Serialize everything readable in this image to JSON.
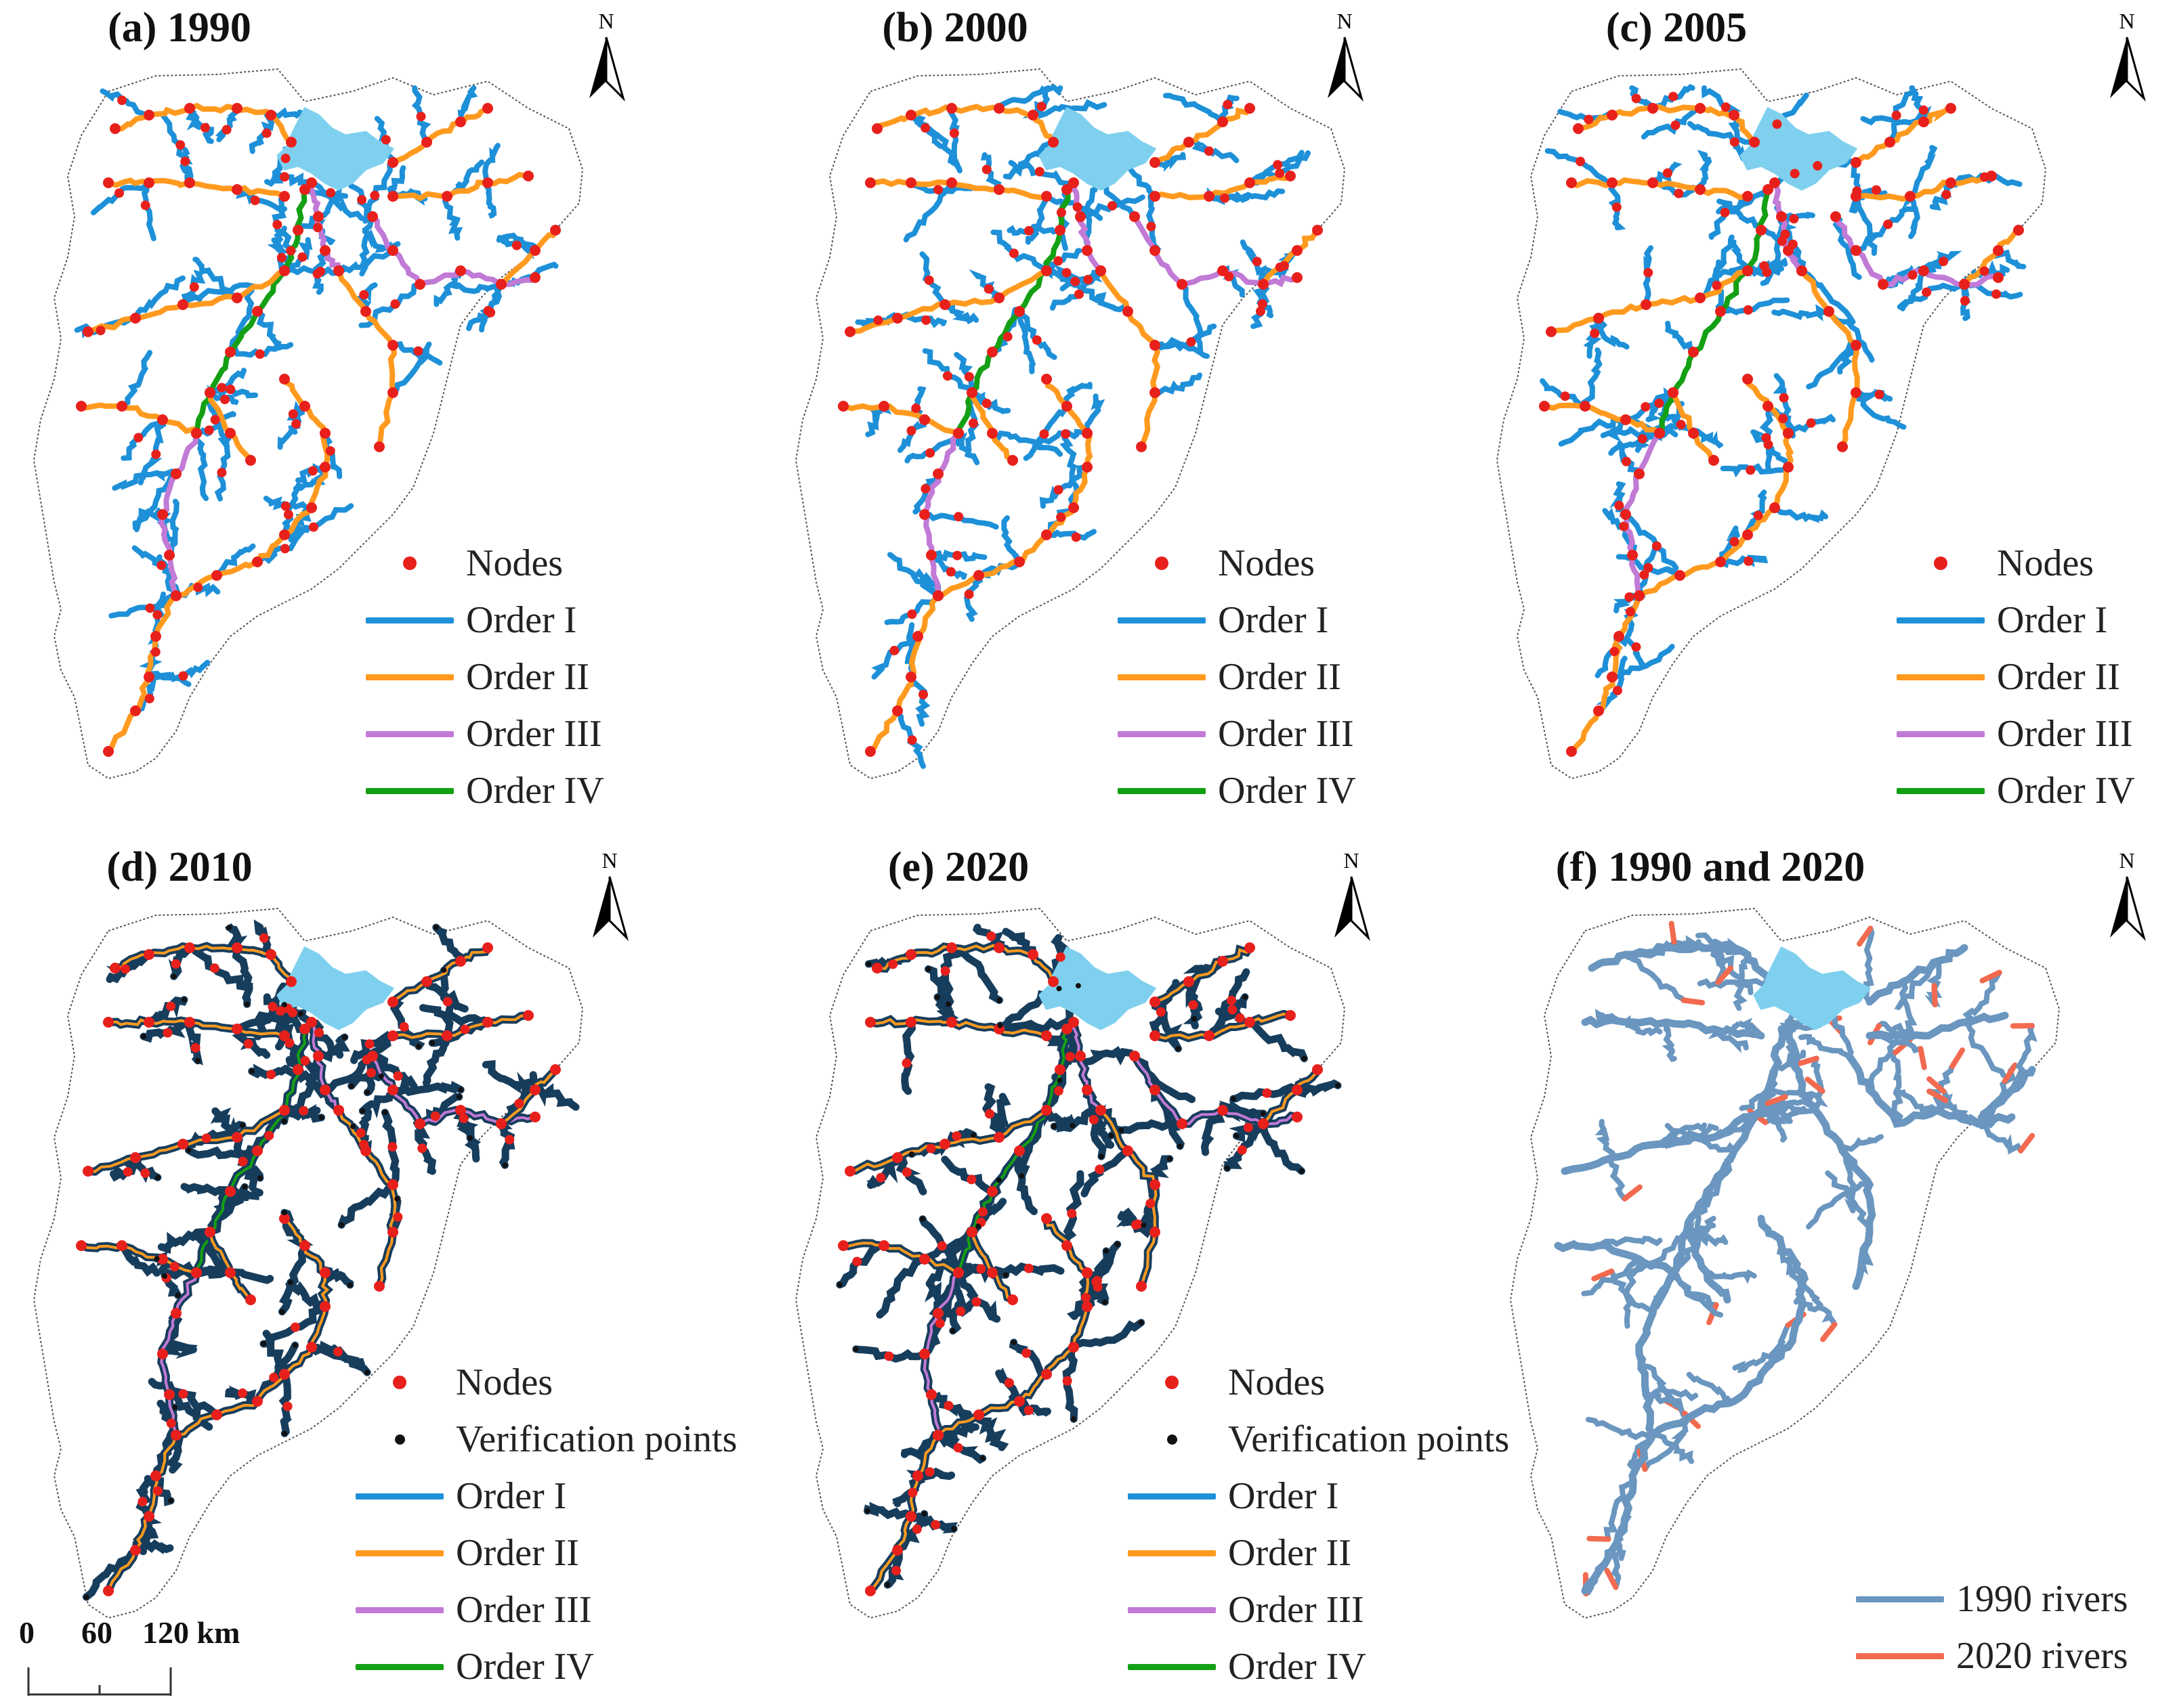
{
  "figure": {
    "panels": [
      {
        "id": "a",
        "title": "(a) 1990",
        "year": "1990",
        "scheme": "orders"
      },
      {
        "id": "b",
        "title": "(b) 2000",
        "year": "2000",
        "scheme": "orders"
      },
      {
        "id": "c",
        "title": "(c) 2005",
        "year": "2005",
        "scheme": "orders"
      },
      {
        "id": "d",
        "title": "(d) 2010",
        "year": "2010",
        "scheme": "verification"
      },
      {
        "id": "e",
        "title": "(e) 2020",
        "year": "2020",
        "scheme": "verification"
      },
      {
        "id": "f",
        "title": "(f) 1990 and 2020",
        "year": "1990 and 2020",
        "scheme": "comparison"
      }
    ],
    "north_label": "N",
    "legend_orders": {
      "nodes": "Nodes",
      "order1": "Order I",
      "order2": "Order II",
      "order3": "Order III",
      "order4": "Order IV"
    },
    "legend_verification": {
      "nodes": "Nodes",
      "verification": "Verification points",
      "order1": "Order I",
      "order2": "Order II",
      "order3": "Order III",
      "order4": "Order IV"
    },
    "legend_comparison": {
      "rivers_1990": "1990 rivers",
      "rivers_2020": "2020 rivers"
    },
    "scale_bar": {
      "ticks": [
        "0",
        "60",
        "120 km"
      ]
    },
    "colors": {
      "order1": "#1e90d8",
      "order2": "#ff9a1f",
      "order3": "#c17ad6",
      "order4": "#14a014",
      "node": "#e8201c",
      "verification": "#111111",
      "lake": "#7fd0ee",
      "rivers_1990": "#6a96bf",
      "rivers_2020": "#f26a4f",
      "dark_river": "#173d5c",
      "boundary": "#555555"
    }
  }
}
